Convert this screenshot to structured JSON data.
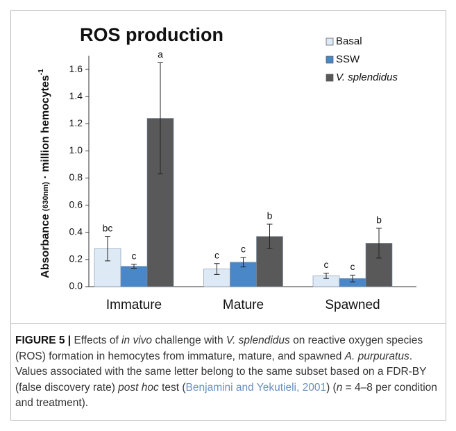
{
  "chart_data": {
    "type": "bar",
    "title": "ROS production",
    "ylabel": {
      "main": "Absorbance",
      "sub": "(630nm)",
      "rest": " · million hemocytes",
      "sup": "-1"
    },
    "categories": [
      "Immature",
      "Mature",
      "Spawned"
    ],
    "series": [
      {
        "name": "Basal",
        "color": "#dde9f5",
        "values": [
          0.28,
          0.13,
          0.08
        ],
        "errors": [
          0.09,
          0.04,
          0.02
        ],
        "letters": [
          "bc",
          "c",
          "c"
        ]
      },
      {
        "name": "SSW",
        "color": "#4a87c9",
        "values": [
          0.15,
          0.18,
          0.06
        ],
        "errors": [
          0.015,
          0.035,
          0.025
        ],
        "letters": [
          "c",
          "c",
          "c"
        ]
      },
      {
        "name": "V. splendidus",
        "name_style": "italic",
        "color": "#595959",
        "values": [
          1.24,
          0.37,
          0.32
        ],
        "errors": [
          0.41,
          0.09,
          0.11
        ],
        "letters": [
          "a",
          "b",
          "b"
        ]
      }
    ],
    "ylim": [
      0,
      1.7
    ],
    "yticks": [
      {
        "value": 0,
        "label": "0.0"
      },
      0.2,
      0.4,
      0.6,
      0.8,
      {
        "value": 1,
        "label": "1.0"
      },
      1.2,
      1.4,
      1.6
    ],
    "legend": "upper right"
  },
  "caption": {
    "label": "FIGURE 5 |",
    "runs": [
      {
        "text": " Effects of "
      },
      {
        "text": "in vivo",
        "style": "italic"
      },
      {
        "text": " challenge with "
      },
      {
        "text": "V. splendidus",
        "style": "italic"
      },
      {
        "text": " on reactive oxygen species (ROS) formation in hemocytes from immature, mature, and spawned "
      },
      {
        "text": "A. purpuratus",
        "style": "italic"
      },
      {
        "text": ". Values associated with the same letter belong to the same subset based on a FDR-BY (false discovery rate) "
      },
      {
        "text": "post hoc",
        "style": "italic"
      },
      {
        "text": " test ("
      },
      {
        "text": "Benjamini and Yekutieli, 2001",
        "style": "link"
      },
      {
        "text": ") ("
      },
      {
        "text": "n",
        "style": "italic"
      },
      {
        "text": " = 4–8 per condition and treatment)."
      }
    ]
  }
}
